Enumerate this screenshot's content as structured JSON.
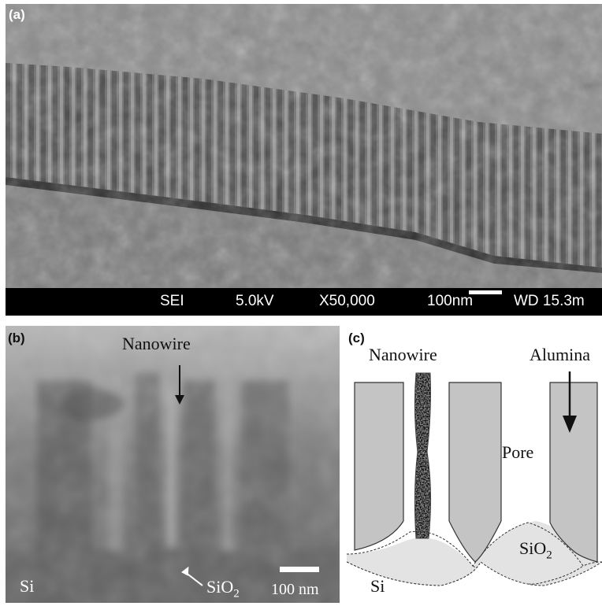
{
  "panel_a": {
    "label": "(a)",
    "info_bar": {
      "detector": "SEI",
      "voltage": "5.0kV",
      "magnification": "X50,000",
      "scale": "100nm",
      "working_distance": "WD 15.3m"
    }
  },
  "panel_b": {
    "label": "(b)",
    "nanowire_label": "Nanowire",
    "sio2_label": "SiO",
    "sio2_sub": "2",
    "si_label": "Si",
    "scale_label": "100 nm"
  },
  "panel_c": {
    "label": "(c)",
    "nanowire_label": "Nanowire",
    "alumina_label": "Alumina",
    "pore_label": "Pore",
    "sio2_label": "SiO",
    "sio2_sub": "2",
    "si_label": "Si"
  },
  "colors": {
    "alumina_fill": "#c4c4c4",
    "sio2_fill": "#e2e2e2",
    "background": "#ffffff"
  }
}
